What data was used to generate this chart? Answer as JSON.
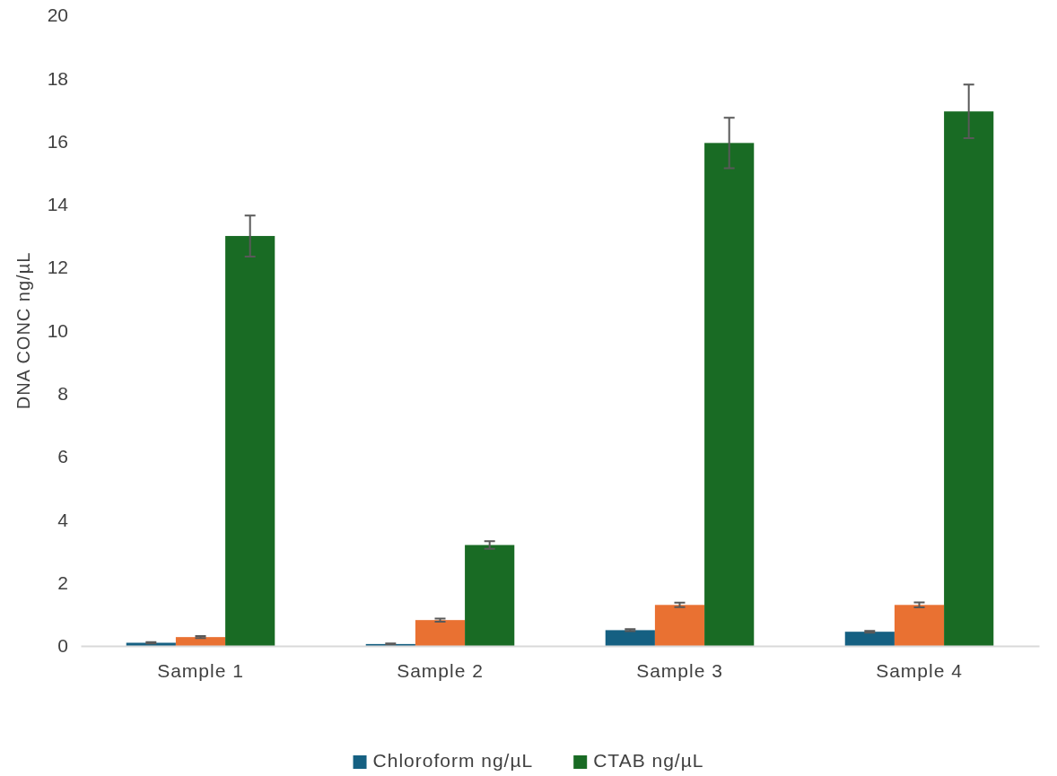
{
  "chart_data": {
    "type": "bar",
    "ylabel": "DNA CONC ng/µL",
    "categories": [
      "Sample 1",
      "Sample 2",
      "Sample 3",
      "Sample 4"
    ],
    "series": [
      {
        "name": "Chloroform ng/µL",
        "color": "#156082",
        "values": [
          0.1,
          0.06,
          0.5,
          0.45
        ],
        "errors": [
          0.02,
          0.02,
          0.03,
          0.03
        ]
      },
      {
        "color": "#e97132",
        "values": [
          0.28,
          0.82,
          1.3,
          1.3
        ],
        "errors": [
          0.03,
          0.05,
          0.07,
          0.08
        ]
      },
      {
        "name": "CTAB ng/µL",
        "color": "#196b24",
        "values": [
          13,
          3.2,
          15.95,
          16.95
        ],
        "errors": [
          0.65,
          0.12,
          0.8,
          0.85
        ]
      }
    ],
    "ylim": [
      0,
      20
    ],
    "yticks": [
      0,
      2,
      4,
      6,
      8,
      10,
      12,
      14,
      16,
      18,
      20
    ],
    "grid": false,
    "legend": "bottom"
  }
}
